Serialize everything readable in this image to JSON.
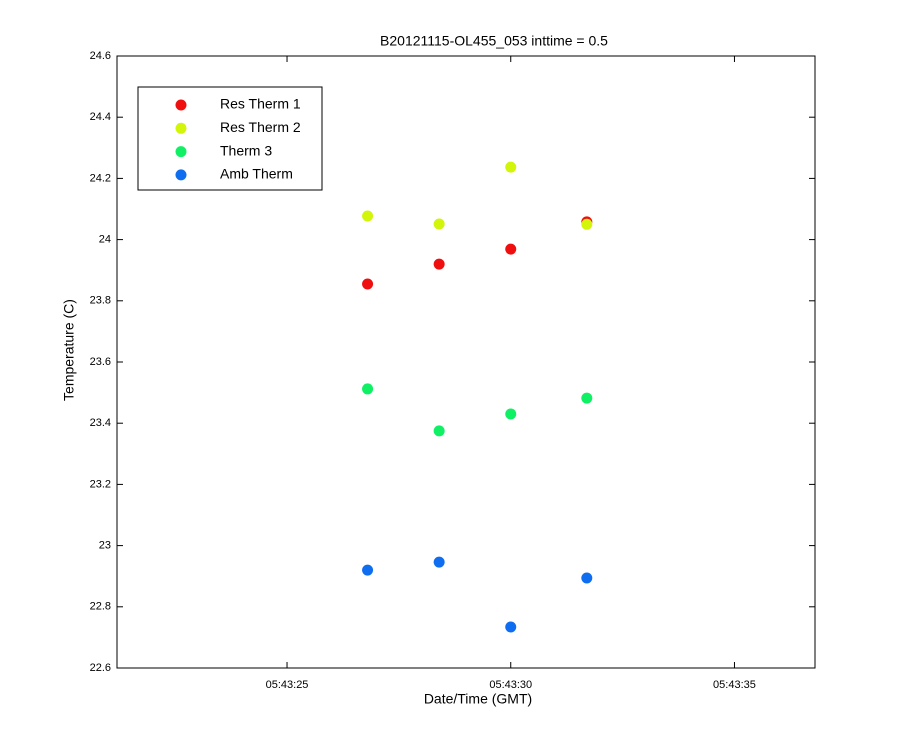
{
  "chart_data": {
    "type": "scatter",
    "title": "B20121115-OL455_053 inttime = 0.5",
    "x_label": "Date/Time (GMT)",
    "y_label": "Temperature (C)",
    "x": [
      "05:43:26.8",
      "05:43:28.4",
      "05:43:30.0",
      "05:43:31.7"
    ],
    "series": [
      {
        "name": "Res Therm 1",
        "color": "#f00f0f",
        "values": [
          23.855,
          23.92,
          23.969,
          24.058
        ]
      },
      {
        "name": "Res Therm 2",
        "color": "#d2f50a",
        "values": [
          24.077,
          24.051,
          24.237,
          24.05
        ]
      },
      {
        "name": "Therm 3",
        "color": "#0ff064",
        "values": [
          23.512,
          23.375,
          23.43,
          23.482
        ]
      },
      {
        "name": "Amb Therm",
        "color": "#0f6ef0",
        "values": [
          22.92,
          22.946,
          22.734,
          22.894
        ]
      }
    ],
    "xlim": [
      "05:43:21.2",
      "05:43:36.8"
    ],
    "xticks": [
      "05:43:25",
      "05:43:30",
      "05:43:35"
    ],
    "ylim": [
      22.6,
      24.6
    ],
    "yticks": [
      22.6,
      22.8,
      23,
      23.2,
      23.4,
      23.6,
      23.8,
      24,
      24.2,
      24.4,
      24.6
    ],
    "legend": "upper-left",
    "grid": false
  }
}
